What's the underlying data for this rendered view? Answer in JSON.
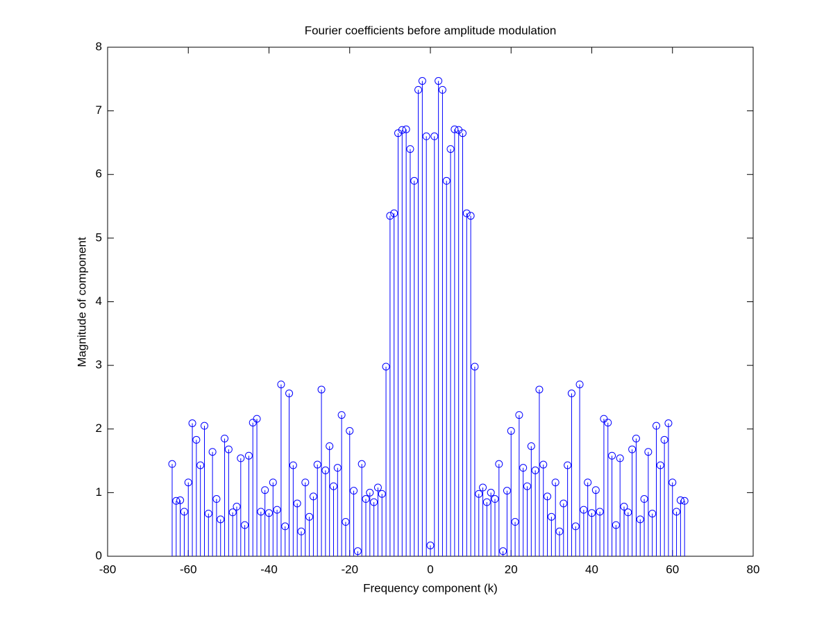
{
  "chart_data": {
    "type": "stem",
    "title": "Fourier coefficients before amplitude modulation",
    "xlabel": "Frequency component (k)",
    "ylabel": "Magnitude of component",
    "color": "#0000ff",
    "xlim": [
      -80,
      80
    ],
    "xticks": [
      -80,
      -60,
      -40,
      -20,
      0,
      20,
      40,
      60,
      80
    ],
    "ylim": [
      0,
      8
    ],
    "yticks": [
      0,
      1,
      2,
      3,
      4,
      5,
      6,
      7,
      8
    ],
    "x": [
      -64,
      -63,
      -62,
      -61,
      -60,
      -59,
      -58,
      -57,
      -56,
      -55,
      -54,
      -53,
      -52,
      -51,
      -50,
      -49,
      -48,
      -47,
      -46,
      -45,
      -44,
      -43,
      -42,
      -41,
      -40,
      -39,
      -38,
      -37,
      -36,
      -35,
      -34,
      -33,
      -32,
      -31,
      -30,
      -29,
      -28,
      -27,
      -26,
      -25,
      -24,
      -23,
      -22,
      -21,
      -20,
      -19,
      -18,
      -17,
      -16,
      -15,
      -14,
      -13,
      -12,
      -11,
      -10,
      -9,
      -8,
      -7,
      -6,
      -5,
      -4,
      -3,
      -2,
      -1,
      0,
      1,
      2,
      3,
      4,
      5,
      6,
      7,
      8,
      9,
      10,
      11,
      12,
      13,
      14,
      15,
      16,
      17,
      18,
      19,
      20,
      21,
      22,
      23,
      24,
      25,
      26,
      27,
      28,
      29,
      30,
      31,
      32,
      33,
      34,
      35,
      36,
      37,
      38,
      39,
      40,
      41,
      42,
      43,
      44,
      45,
      46,
      47,
      48,
      49,
      50,
      51,
      52,
      53,
      54,
      55,
      56,
      57,
      58,
      59,
      60,
      61,
      62,
      63
    ],
    "values": [
      1.45,
      0.87,
      0.88,
      0.7,
      1.16,
      2.09,
      1.83,
      1.43,
      2.05,
      0.67,
      1.64,
      0.9,
      0.58,
      1.85,
      1.68,
      0.69,
      0.78,
      1.54,
      0.49,
      1.58,
      2.1,
      2.16,
      0.7,
      1.04,
      0.68,
      1.16,
      0.73,
      2.7,
      0.47,
      2.56,
      1.43,
      0.83,
      0.39,
      1.16,
      0.62,
      0.94,
      1.44,
      2.62,
      1.35,
      1.73,
      1.1,
      1.39,
      2.22,
      0.54,
      1.97,
      1.03,
      0.08,
      1.45,
      0.9,
      1.0,
      0.85,
      1.08,
      0.98,
      2.98,
      5.35,
      5.39,
      6.65,
      6.7,
      6.71,
      6.4,
      5.9,
      7.33,
      7.47,
      6.6,
      0.17,
      6.6,
      7.47,
      7.33,
      5.9,
      6.4,
      6.71,
      6.7,
      6.65,
      5.39,
      5.35,
      2.98,
      0.98,
      1.08,
      0.85,
      1.0,
      0.9,
      1.45,
      0.08,
      1.03,
      1.97,
      0.54,
      2.22,
      1.39,
      1.1,
      1.73,
      1.35,
      2.62,
      1.44,
      0.94,
      0.62,
      1.16,
      0.39,
      0.83,
      1.43,
      2.56,
      0.47,
      2.7,
      0.73,
      1.16,
      0.68,
      1.04,
      0.7,
      2.16,
      2.1,
      1.58,
      0.49,
      1.54,
      0.78,
      0.69,
      1.68,
      1.85,
      0.58,
      0.9,
      1.64,
      0.67,
      2.05,
      1.43,
      1.83,
      2.09,
      1.16,
      0.7,
      0.88,
      0.87
    ]
  }
}
